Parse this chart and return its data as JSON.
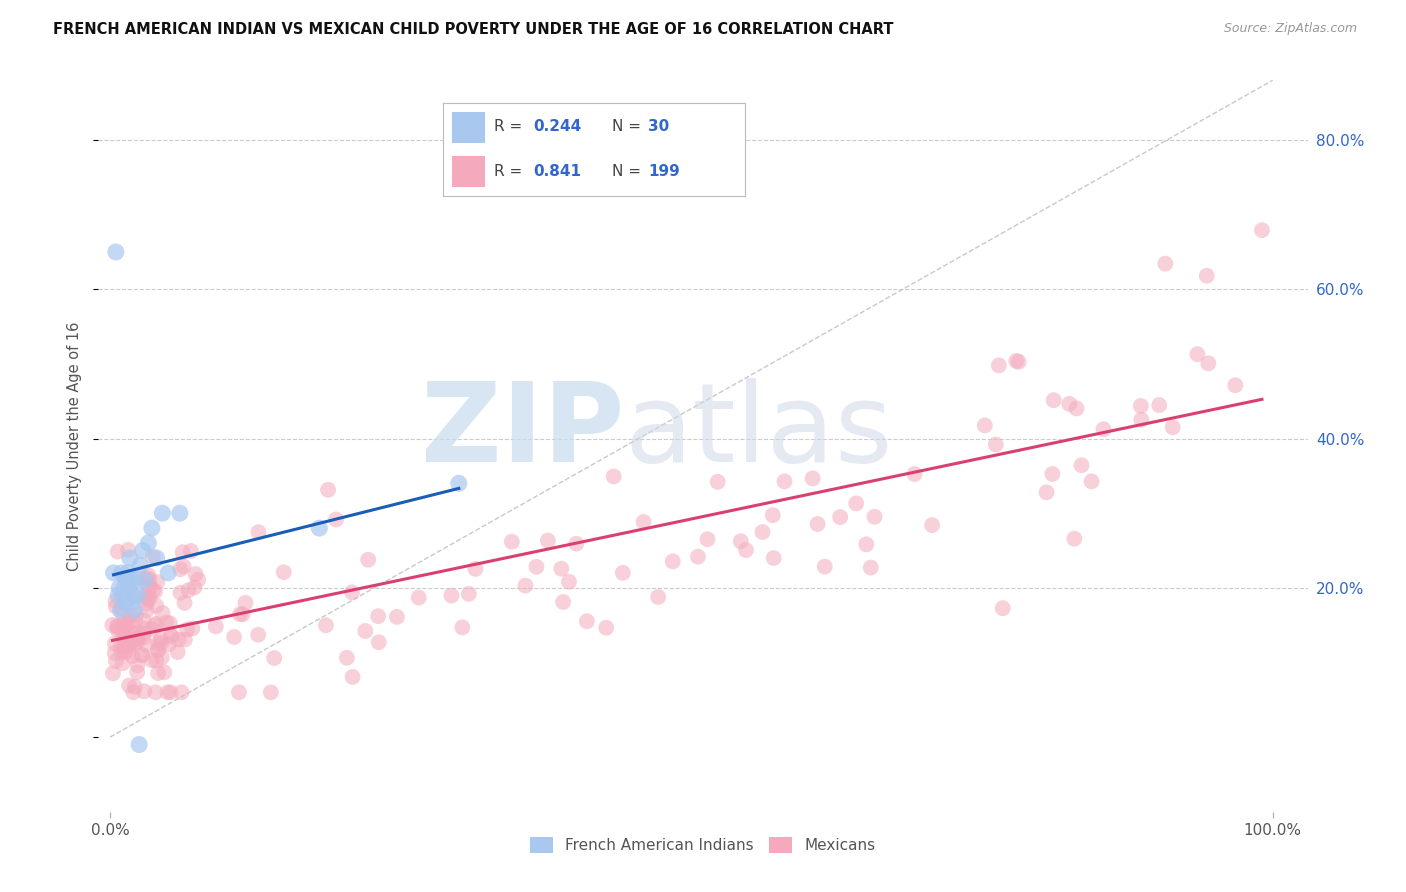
{
  "title": "FRENCH AMERICAN INDIAN VS MEXICAN CHILD POVERTY UNDER THE AGE OF 16 CORRELATION CHART",
  "source": "Source: ZipAtlas.com",
  "ylabel": "Child Poverty Under the Age of 16",
  "xlabel": "",
  "color_blue": "#A8C8F0",
  "color_pink": "#F4AABC",
  "line_color_blue": "#1A5EB8",
  "line_color_pink": "#D94070",
  "label1": "French American Indians",
  "label2": "Mexicans",
  "background_color": "#FFFFFF",
  "watermark_zip": "ZIP",
  "watermark_atlas": "atlas",
  "legend_r1": "0.244",
  "legend_n1": "30",
  "legend_r2": "0.841",
  "legend_n2": "199",
  "right_ytick_values": [
    0.2,
    0.4,
    0.6,
    0.8
  ],
  "right_ytick_labels": [
    "20.0%",
    "40.0%",
    "60.0%",
    "80.0%"
  ]
}
